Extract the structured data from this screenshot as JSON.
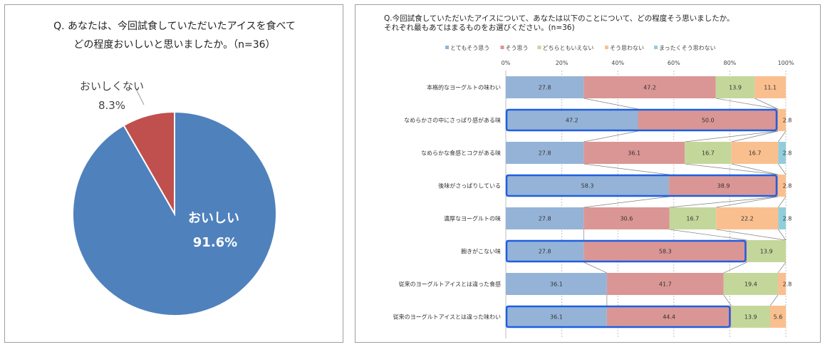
{
  "left_panel": {
    "question_line1": "Q. あなたは、今回試食していただいたアイスを食べて",
    "question_line2": "どの程度おいしいと思いましたか。（n=36）"
  },
  "right_panel": {
    "question_line1": "Q.今回試食していただいたアイスについて、あなたは以下のことについて、どの程度そう思いましたか。",
    "question_line2": "それぞれ最もあてはまるものをお選びください。(n=36)"
  },
  "colors": {
    "pie_main": "#4f81bd",
    "pie_other": "#c0504d",
    "s1": "#95b3d7",
    "s2": "#da9694",
    "s3": "#c4d79b",
    "s4": "#fabf8f",
    "s5": "#92cddc",
    "highlight": "#1f5fe0"
  },
  "chart_data": [
    {
      "type": "pie",
      "title": "Q. あなたは、今回試食していただいたアイスを食べて どの程度おいしいと思いましたか。（n=36）",
      "slices": [
        {
          "label": "おいしい",
          "value": 91.6,
          "value_label": "91.6%"
        },
        {
          "label": "おいしくない",
          "value": 8.3,
          "value_label": "8.3%"
        }
      ]
    },
    {
      "type": "bar",
      "orientation": "horizontal-stacked-100",
      "title": "Q.今回試食していただいたアイスについて、あなたは以下のことについて、どの程度そう思いましたか。 それぞれ最もあてはまるものをお選びください。(n=36)",
      "xlim": [
        0,
        100
      ],
      "x_ticks": [
        "0%",
        "20%",
        "40%",
        "60%",
        "80%",
        "100%"
      ],
      "legend_position": "top",
      "categories": [
        "本格的なヨーグルトの味わい",
        "なめらかさの中にさっぱり感がある味",
        "なめらかな食感とコクがある味",
        "後味がさっぱりしている",
        "濃厚なヨーグルトの味",
        "飽きがこない味",
        "従来のヨーグルトアイスとは違った食感",
        "従来のヨーグルトアイスとは違った味わい"
      ],
      "series": [
        {
          "name": "とてもそう思う",
          "values": [
            27.8,
            47.2,
            27.8,
            58.3,
            27.8,
            27.8,
            36.1,
            36.1
          ]
        },
        {
          "name": "そう思う",
          "values": [
            47.2,
            50.0,
            36.1,
            38.9,
            30.6,
            58.3,
            41.7,
            44.4
          ]
        },
        {
          "name": "どちらともいえない",
          "values": [
            13.9,
            0,
            16.7,
            0,
            16.7,
            13.9,
            19.4,
            13.9
          ]
        },
        {
          "name": "そう思わない",
          "values": [
            11.1,
            2.8,
            16.7,
            2.8,
            22.2,
            0,
            2.8,
            5.6
          ]
        },
        {
          "name": "まったくそう思わない",
          "values": [
            0,
            0,
            2.8,
            0,
            2.8,
            0,
            0,
            0
          ]
        }
      ],
      "value_labels": [
        [
          "27.8",
          "47.2",
          "13.9",
          "11.1",
          ""
        ],
        [
          "47.2",
          "50.0",
          "",
          "2.8",
          ""
        ],
        [
          "27.8",
          "36.1",
          "16.7",
          "16.7",
          "2.8"
        ],
        [
          "58.3",
          "38.9",
          "",
          "2.8",
          ""
        ],
        [
          "27.8",
          "30.6",
          "16.7",
          "22.2",
          "2.8"
        ],
        [
          "27.8",
          "58.3",
          "13.9",
          "",
          ""
        ],
        [
          "36.1",
          "41.7",
          "19.4",
          "2.8",
          ""
        ],
        [
          "36.1",
          "44.4",
          "13.9",
          "5.6",
          ""
        ]
      ],
      "highlighted_rows": [
        1,
        3,
        5,
        7
      ]
    }
  ]
}
